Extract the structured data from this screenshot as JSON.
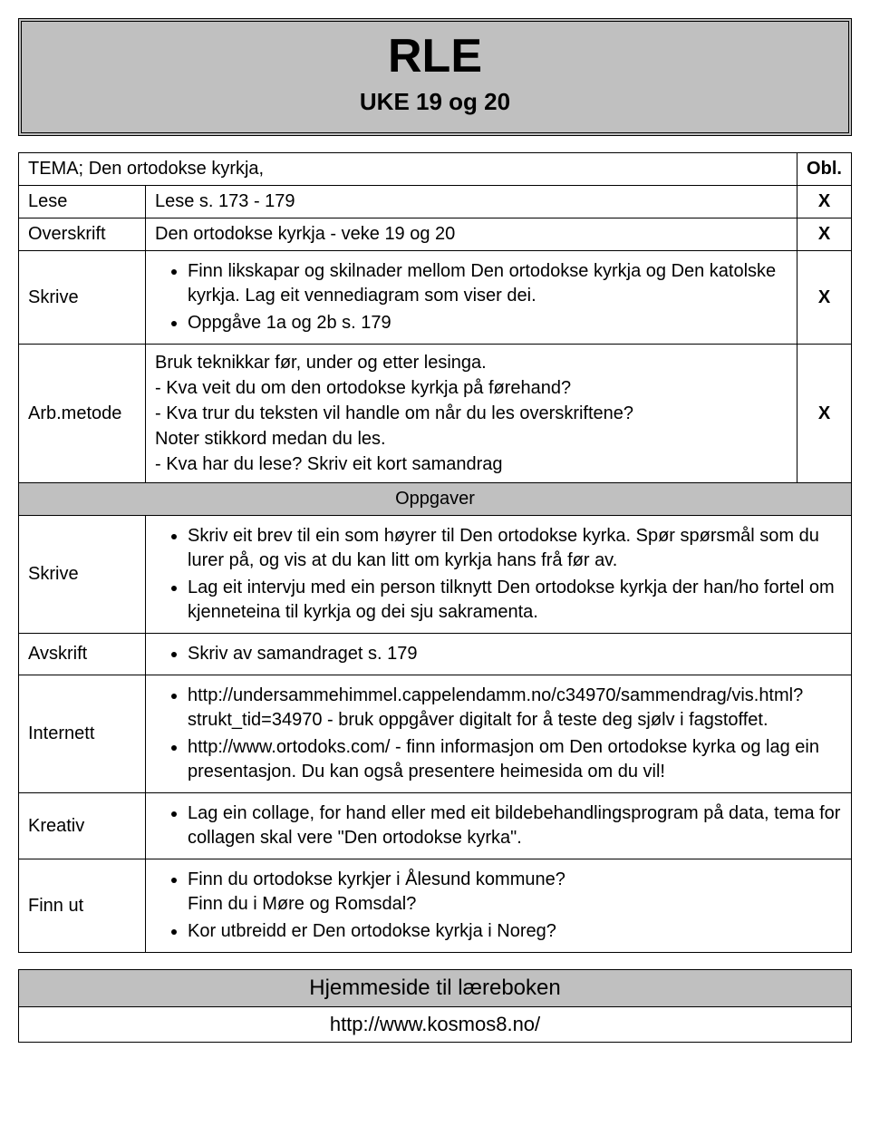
{
  "header": {
    "title": "RLE",
    "subtitle": "UKE 19 og 20"
  },
  "colors": {
    "header_bg": "#c0c0c0",
    "border": "#000000",
    "page_bg": "#ffffff"
  },
  "tema": {
    "label_prefix": "TEMA;",
    "label_text": "Den ortodokse kyrkja,",
    "obl_header": "Obl."
  },
  "rows": {
    "lese": {
      "label": "Lese",
      "content": "Lese s. 173 - 179",
      "obl": "X"
    },
    "overskrift": {
      "label": "Overskrift",
      "content": "Den ortodokse kyrkja - veke 19 og 20",
      "obl": "X"
    },
    "skrive1": {
      "label": "Skrive",
      "bullets": [
        "Finn likskapar og skilnader mellom Den ortodokse kyrkja og Den katolske kyrkja. Lag eit vennediagram som viser dei.",
        "Oppgåve 1a og 2b s. 179"
      ],
      "obl": "X"
    },
    "arbmetode": {
      "label": "Arb.metode",
      "text": "Bruk teknikkar før, under og etter lesinga.\n- Kva veit du om den ortodokse kyrkja på førehand?\n- Kva trur du teksten vil handle om når du les overskriftene?\nNoter stikkord medan du les.\n- Kva har du lese? Skriv eit kort samandrag",
      "obl": "X"
    }
  },
  "oppgaver_header": "Oppgaver",
  "oppgaver": {
    "skrive": {
      "label": "Skrive",
      "bullets": [
        "Skriv eit brev til ein som høyrer til Den ortodokse kyrka. Spør spørsmål som du lurer på, og vis at du kan litt om kyrkja hans frå før av.",
        "Lag eit intervju med ein person tilknytt Den ortodokse kyrkja der han/ho fortel om kjenneteina til kyrkja og dei sju sakramenta."
      ]
    },
    "avskrift": {
      "label": "Avskrift",
      "bullets": [
        "Skriv av samandraget s. 179"
      ]
    },
    "internett": {
      "label": "Internett",
      "bullets": [
        "http://undersammehimmel.cappelendamm.no/c34970/sammendrag/vis.html?strukt_tid=34970 - bruk oppgåver digitalt for å teste deg sjølv i fagstoffet.",
        "http://www.ortodoks.com/ - finn informasjon om Den ortodokse kyrka og lag ein presentasjon. Du kan også presentere heimesida om du vil!"
      ]
    },
    "kreativ": {
      "label": "Kreativ",
      "bullets": [
        "Lag ein collage, for hand eller med eit bildebehandlingsprogram på data, tema for collagen skal vere \"Den ortodokse kyrka\"."
      ]
    },
    "finnut": {
      "label": "Finn ut",
      "bullets": [
        "Finn du ortodokse kyrkjer i Ålesund kommune?\nFinn du i Møre og Romsdal?",
        "Kor utbreidd er Den ortodokse kyrkja i Noreg?"
      ]
    }
  },
  "footer": {
    "bar": "Hjemmeside til læreboken",
    "url": "http://www.kosmos8.no/"
  }
}
